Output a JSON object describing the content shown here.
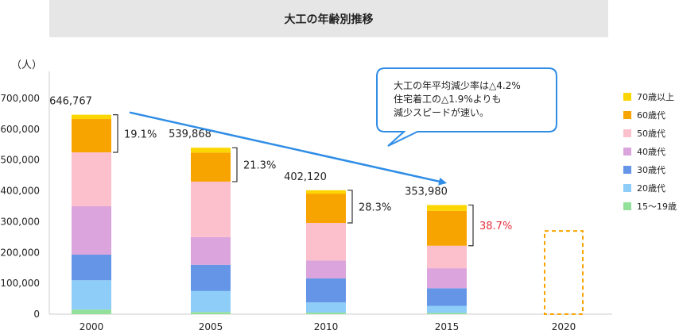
{
  "chart_data": {
    "type": "bar",
    "stacked": true,
    "title": "大工の年齢別推移",
    "ylabel": "（人）",
    "ylim": [
      0,
      700000
    ],
    "yticks": [
      0,
      100000,
      200000,
      300000,
      400000,
      500000,
      600000,
      700000
    ],
    "ytick_labels": [
      "0",
      "100,000",
      "200,000",
      "300,000",
      "400,000",
      "500,000",
      "600,000",
      "700,000"
    ],
    "categories": [
      "2000",
      "2005",
      "2010",
      "2015",
      "2020"
    ],
    "totals": [
      646767,
      539868,
      402120,
      353980,
      null
    ],
    "total_labels": [
      "646,767",
      "539,868",
      "402,120",
      "353,980",
      ""
    ],
    "series": [
      {
        "name": "15〜19歳",
        "color": "#92e09a",
        "values": [
          15000,
          7000,
          5000,
          4000,
          null
        ]
      },
      {
        "name": "20歳代",
        "color": "#8ecdf8",
        "values": [
          95000,
          68000,
          33000,
          23000,
          null
        ]
      },
      {
        "name": "30歳代",
        "color": "#6495e6",
        "values": [
          83000,
          85000,
          78000,
          57000,
          null
        ]
      },
      {
        "name": "40歳代",
        "color": "#dba4dc",
        "values": [
          157000,
          90000,
          58000,
          65000,
          null
        ]
      },
      {
        "name": "50歳代",
        "color": "#fcc0cc",
        "values": [
          175000,
          180000,
          122000,
          73000,
          null
        ]
      },
      {
        "name": "60歳代",
        "color": "#f8a400",
        "values": [
          108000,
          94000,
          95000,
          113000,
          null
        ]
      },
      {
        "name": "70歳以上",
        "color": "#fcd602",
        "values": [
          14000,
          16000,
          11000,
          19000,
          null
        ]
      }
    ],
    "share_annotations": [
      {
        "category": "2000",
        "label": "19.1%",
        "color": "#222222"
      },
      {
        "category": "2005",
        "label": "21.3%",
        "color": "#222222"
      },
      {
        "category": "2010",
        "label": "28.3%",
        "color": "#222222"
      },
      {
        "category": "2015",
        "label": "38.7%",
        "color": "#e8323c"
      }
    ],
    "placeholder_category": "2020",
    "placeholder_value": 270000,
    "placeholder_color": "#f8a400",
    "trend_arrow_color": "#2f8de6",
    "callout": {
      "lines": [
        "大工の年平均減少率は△4.2%",
        "住宅着工の△1.9%よりも",
        "減少スピードが速い。"
      ],
      "border_color": "#2f8de6"
    },
    "legend_position": "right",
    "grid": false
  }
}
